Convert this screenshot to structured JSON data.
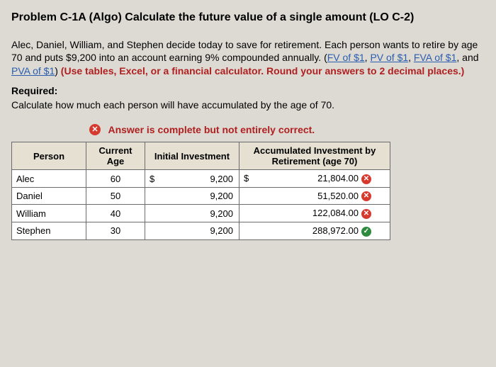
{
  "title": "Problem C-1A (Algo) Calculate the future value of a single amount (LO C-2)",
  "paragraph": {
    "lead": "Alec, Daniel, William, and Stephen decide today to save for retirement. Each person wants to retire by age 70 and puts $9,200 into an account earning 9% compounded annually. (",
    "links": [
      "FV of $1",
      "PV of $1",
      "FVA of $1",
      "PVA of $1"
    ],
    "sep": ", ",
    "and": " and ",
    "close": ") ",
    "red": "(Use tables, Excel, or a financial calculator. Round your answers to 2 decimal places.)"
  },
  "required_h": "Required:",
  "required_t": "Calculate how much each person will have accumulated by the age of 70.",
  "feedback": "Answer is complete but not entirely correct.",
  "headers": {
    "person": "Person",
    "age": "Current Age",
    "initial": "Initial Investment",
    "accum": "Accumulated Investment by Retirement (age 70)"
  },
  "currency": "$",
  "rows": [
    {
      "person": "Alec",
      "age": "60",
      "show_cur_init": true,
      "init": "9,200",
      "show_cur_acc": true,
      "accum": "21,804.00",
      "correct": false
    },
    {
      "person": "Daniel",
      "age": "50",
      "show_cur_init": false,
      "init": "9,200",
      "show_cur_acc": false,
      "accum": "51,520.00",
      "correct": false
    },
    {
      "person": "William",
      "age": "40",
      "show_cur_init": false,
      "init": "9,200",
      "show_cur_acc": false,
      "accum": "122,084.00",
      "correct": false
    },
    {
      "person": "Stephen",
      "age": "30",
      "show_cur_init": false,
      "init": "9,200",
      "show_cur_acc": false,
      "accum": "288,972.00",
      "correct": true
    }
  ],
  "marks": {
    "wrong": "✕",
    "right": "✓"
  },
  "colors": {
    "bg": "#dcdad3",
    "header_bg": "#e6e0d2",
    "border": "#6b6b6b",
    "link": "#2a5db0",
    "red": "#b02020",
    "wrong": "#d63a2f",
    "right": "#2e8b3d"
  }
}
